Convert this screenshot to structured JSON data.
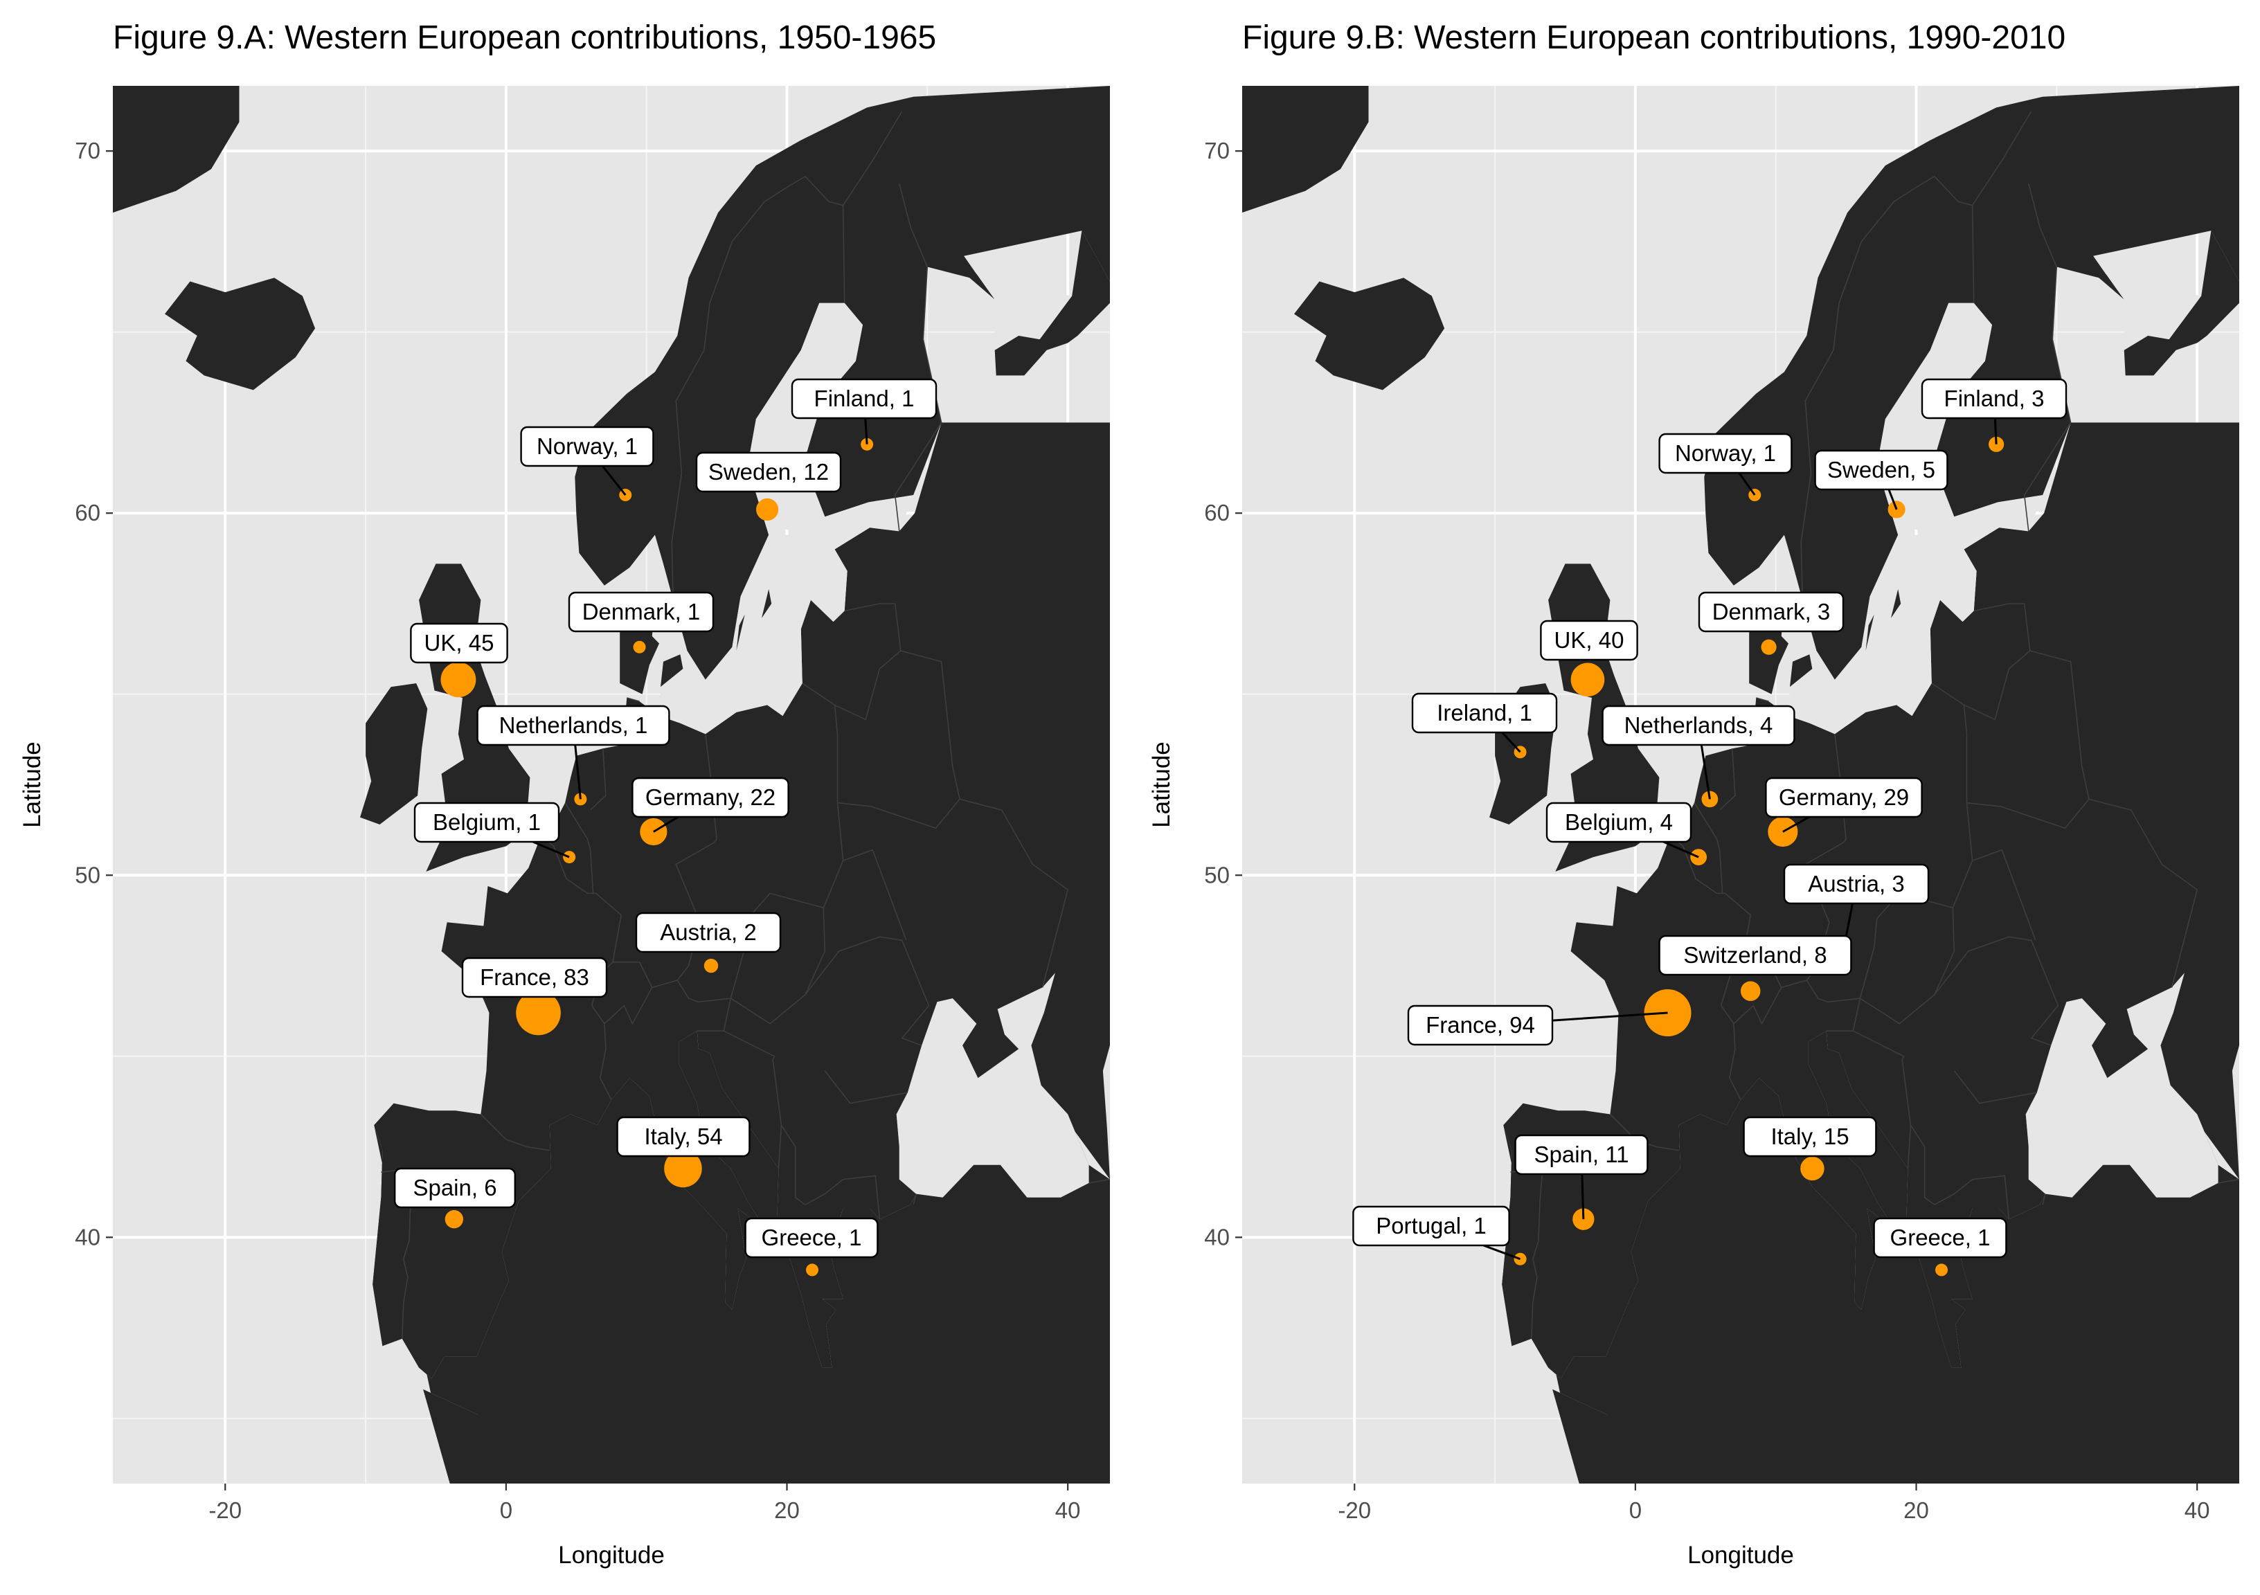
{
  "chart_data": [
    {
      "type": "map-bubble",
      "title": "Figure 9.A: Western European contributions, 1950-1965",
      "xlabel": "Longitude",
      "ylabel": "Latitude",
      "xlim": [
        -28,
        43
      ],
      "ylim": [
        33.2,
        71.8
      ],
      "xticks": [
        -20,
        0,
        20,
        40
      ],
      "yticks": [
        40,
        50,
        60,
        70
      ],
      "grid": true,
      "colors": {
        "panel": "#e6e6e6",
        "land": "#262626",
        "point": "#ff9900"
      },
      "points": [
        {
          "label": "Finland, 1",
          "lon": 25.7,
          "lat": 61.9,
          "value": 1
        },
        {
          "label": "Norway, 1",
          "lon": 8.5,
          "lat": 60.5,
          "value": 1
        },
        {
          "label": "Sweden, 12",
          "lon": 18.6,
          "lat": 60.1,
          "value": 12
        },
        {
          "label": "Denmark, 1",
          "lon": 9.5,
          "lat": 56.3,
          "value": 1
        },
        {
          "label": "UK, 45",
          "lon": -3.4,
          "lat": 55.4,
          "value": 45
        },
        {
          "label": "Netherlands, 1",
          "lon": 5.3,
          "lat": 52.1,
          "value": 1
        },
        {
          "label": "Germany, 22",
          "lon": 10.5,
          "lat": 51.2,
          "value": 22
        },
        {
          "label": "Belgium, 1",
          "lon": 4.5,
          "lat": 50.5,
          "value": 1
        },
        {
          "label": "Austria, 2",
          "lon": 14.6,
          "lat": 47.5,
          "value": 2
        },
        {
          "label": "France, 83",
          "lon": 2.3,
          "lat": 46.2,
          "value": 83
        },
        {
          "label": "Italy, 54",
          "lon": 12.6,
          "lat": 41.9,
          "value": 54
        },
        {
          "label": "Spain, 6",
          "lon": -3.7,
          "lat": 40.5,
          "value": 6
        },
        {
          "label": "Greece, 1",
          "lon": 21.8,
          "lat": 39.1,
          "value": 1
        }
      ]
    },
    {
      "type": "map-bubble",
      "title": "Figure 9.B: Western European contributions, 1990-2010",
      "xlabel": "Longitude",
      "ylabel": "Latitude",
      "xlim": [
        -28,
        43
      ],
      "ylim": [
        33.2,
        71.8
      ],
      "xticks": [
        -20,
        0,
        20,
        40
      ],
      "yticks": [
        40,
        50,
        60,
        70
      ],
      "grid": true,
      "colors": {
        "panel": "#e6e6e6",
        "land": "#262626",
        "point": "#ff9900"
      },
      "points": [
        {
          "label": "Finland, 3",
          "lon": 25.7,
          "lat": 61.9,
          "value": 3
        },
        {
          "label": "Norway, 1",
          "lon": 8.5,
          "lat": 60.5,
          "value": 1
        },
        {
          "label": "Sweden, 5",
          "lon": 18.6,
          "lat": 60.1,
          "value": 5
        },
        {
          "label": "Denmark, 3",
          "lon": 9.5,
          "lat": 56.3,
          "value": 3
        },
        {
          "label": "UK, 40",
          "lon": -3.4,
          "lat": 55.4,
          "value": 40
        },
        {
          "label": "Ireland, 1",
          "lon": -8.2,
          "lat": 53.4,
          "value": 1
        },
        {
          "label": "Netherlands, 4",
          "lon": 5.3,
          "lat": 52.1,
          "value": 4
        },
        {
          "label": "Germany, 29",
          "lon": 10.5,
          "lat": 51.2,
          "value": 29
        },
        {
          "label": "Belgium, 4",
          "lon": 4.5,
          "lat": 50.5,
          "value": 4
        },
        {
          "label": "Austria, 3",
          "lon": 14.6,
          "lat": 47.5,
          "value": 3
        },
        {
          "label": "Switzerland, 8",
          "lon": 8.2,
          "lat": 46.8,
          "value": 8
        },
        {
          "label": "France, 94",
          "lon": 2.3,
          "lat": 46.2,
          "value": 94
        },
        {
          "label": "Italy, 15",
          "lon": 12.6,
          "lat": 41.9,
          "value": 15
        },
        {
          "label": "Spain, 11",
          "lon": -3.7,
          "lat": 40.5,
          "value": 11
        },
        {
          "label": "Portugal, 1",
          "lon": -8.2,
          "lat": 39.4,
          "value": 1
        },
        {
          "label": "Greece, 1",
          "lon": 21.8,
          "lat": 39.1,
          "value": 1
        }
      ]
    }
  ]
}
